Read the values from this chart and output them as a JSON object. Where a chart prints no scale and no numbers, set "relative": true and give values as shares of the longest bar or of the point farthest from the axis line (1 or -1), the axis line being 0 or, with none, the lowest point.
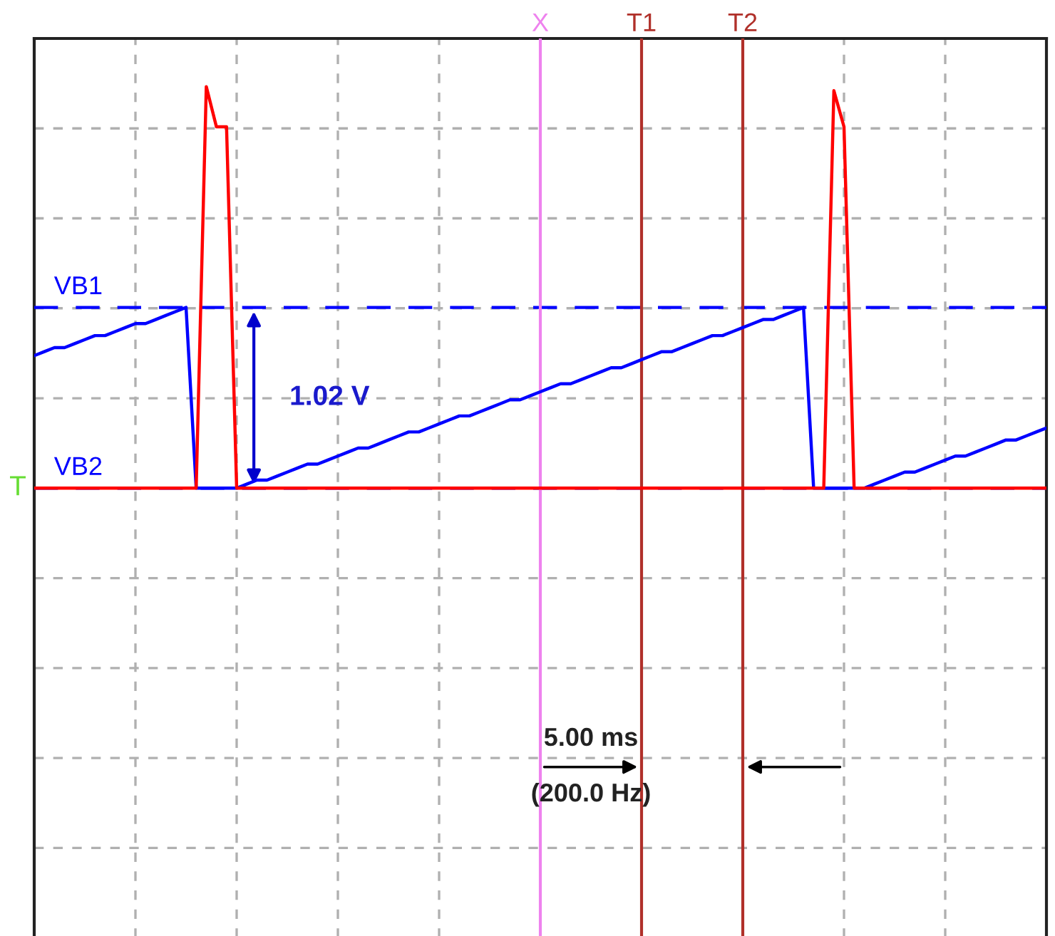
{
  "chart_data": {
    "type": "line",
    "relative": true,
    "categories": [
      null,
      null,
      null,
      null,
      null,
      null,
      null,
      null,
      null,
      null,
      null,
      null,
      null,
      null,
      null,
      null,
      null,
      null,
      null,
      null,
      null,
      null,
      null,
      null,
      null,
      null,
      null,
      null,
      null,
      null,
      null,
      null,
      null,
      null,
      null,
      null,
      null,
      null,
      null,
      null,
      null,
      null,
      null,
      null,
      null,
      null,
      null,
      null,
      null,
      null,
      null,
      null,
      null,
      null,
      null,
      null,
      null,
      null,
      null,
      null,
      null,
      null,
      null,
      null,
      null,
      null,
      null,
      null,
      null,
      null,
      null,
      null,
      null,
      null,
      null,
      null,
      null,
      null,
      null,
      null,
      null,
      null,
      null,
      null,
      null,
      null,
      null,
      null,
      null,
      null,
      null,
      null,
      null,
      null,
      null,
      null,
      null,
      null,
      null,
      null,
      null
    ],
    "grid": true,
    "line_style": "solid",
    "series": [
      {
        "color": "#0000ff",
        "values": [
          0.33,
          0.34,
          0.35,
          0.35,
          0.36,
          0.37,
          0.38,
          0.38,
          0.39,
          0.4,
          0.41,
          0.41,
          0.42,
          0.43,
          0.44,
          0.45,
          0,
          0,
          0,
          0,
          0.0,
          0.01,
          0.02,
          0.02,
          0.03,
          0.04,
          0.05,
          0.06,
          0.06,
          0.07,
          0.08,
          0.09,
          0.1,
          0.1,
          0.11,
          0.12,
          0.13,
          0.14,
          0.14,
          0.15,
          0.16,
          0.17,
          0.18,
          0.18,
          0.19,
          0.2,
          0.21,
          0.22,
          0.22,
          0.23,
          0.24,
          0.25,
          0.26,
          0.26,
          0.27,
          0.28,
          0.29,
          0.3,
          0.3,
          0.31,
          0.32,
          0.33,
          0.34,
          0.34,
          0.35,
          0.36,
          0.37,
          0.38,
          0.38,
          0.39,
          0.4,
          0.41,
          0.42,
          0.42,
          0.43,
          0.44,
          0.45,
          0,
          0,
          0,
          0,
          0,
          0.0,
          0.01,
          0.02,
          0.03,
          0.04,
          0.04,
          0.05,
          0.06,
          0.07,
          0.08,
          0.08,
          0.09,
          0.1,
          0.11,
          0.12,
          0.12,
          0.13,
          0.14,
          0.15
        ]
      },
      {
        "color": "#ff0000",
        "values": [
          0,
          0,
          0,
          0,
          0,
          0,
          0,
          0,
          0,
          0,
          0,
          0,
          0,
          0,
          0,
          0,
          0,
          1.0,
          0.9,
          0.9,
          0,
          0,
          0,
          0,
          0,
          0,
          0,
          0,
          0,
          0,
          0,
          0,
          0,
          0,
          0,
          0,
          0,
          0,
          0,
          0,
          0,
          0,
          0,
          0,
          0,
          0,
          0,
          0,
          0,
          0,
          0,
          0,
          0,
          0,
          0,
          0,
          0,
          0,
          0,
          0,
          0,
          0,
          0,
          0,
          0,
          0,
          0,
          0,
          0,
          0,
          0,
          0,
          0,
          0,
          0,
          0,
          0,
          0,
          0,
          0.99,
          0.9,
          0,
          0,
          0,
          0,
          0,
          0,
          0,
          0,
          0,
          0,
          0,
          0,
          0,
          0,
          0,
          0,
          0,
          0,
          0,
          0
        ]
      }
    ],
    "ref_lines": [
      {
        "axis": "y",
        "value": 0.45,
        "label": "VB1",
        "color": "#0000ff",
        "line_style": "dashed"
      },
      {
        "axis": "y",
        "value": 0,
        "label": "VB2",
        "color": "#0000ff",
        "line_style": "dashed"
      }
    ],
    "annotations": [
      "T",
      "1.02 V",
      "5.00 ms",
      "(200.0 Hz)",
      "X",
      "T1",
      "T2"
    ]
  }
}
